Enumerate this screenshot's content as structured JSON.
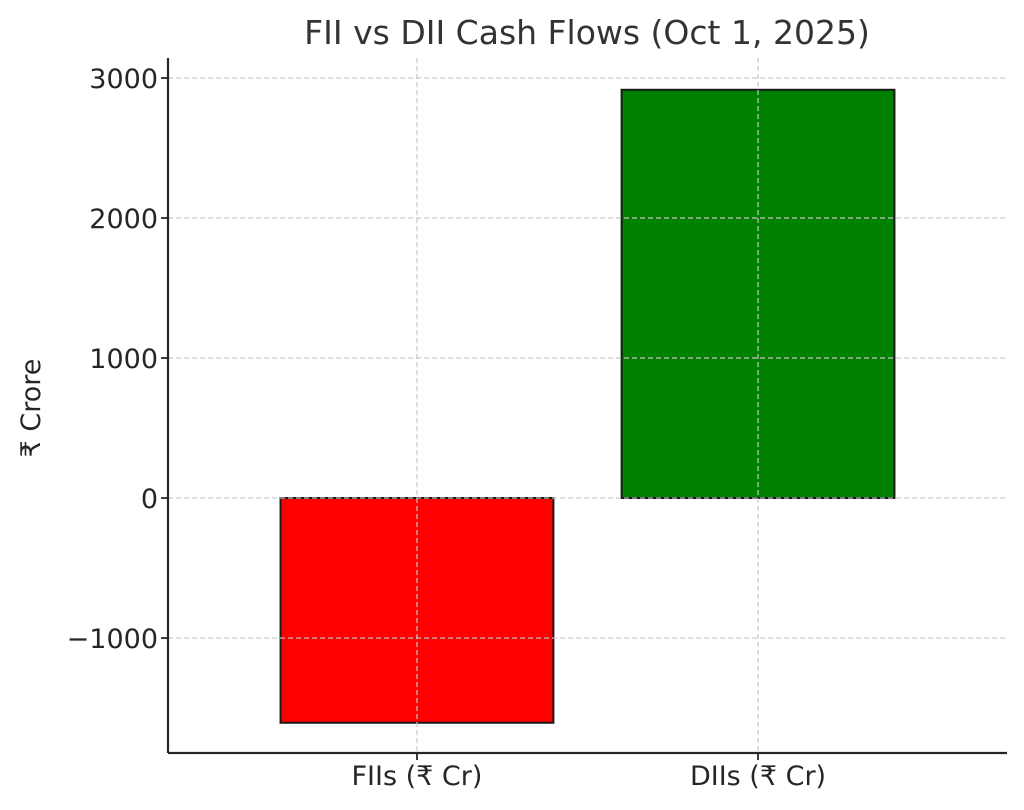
{
  "chart_data": {
    "type": "bar",
    "title": "FII vs DII Cash Flows (Oct 1, 2025)",
    "xlabel": "",
    "ylabel": "₹ Crore",
    "categories": [
      "FIIs (₹ Cr)",
      "DIIs (₹ Cr)"
    ],
    "values": [
      -1605,
      2916
    ],
    "colors": [
      "#ff0000",
      "#008000"
    ],
    "edgecolor": "#1a1a1a",
    "ylim": [
      -1821,
      3143
    ],
    "yticks": [
      -1000,
      0,
      1000,
      2000,
      3000
    ],
    "ytick_labels": [
      "−1000",
      "0",
      "1000",
      "2000",
      "3000"
    ],
    "grid": true,
    "legend": null
  }
}
